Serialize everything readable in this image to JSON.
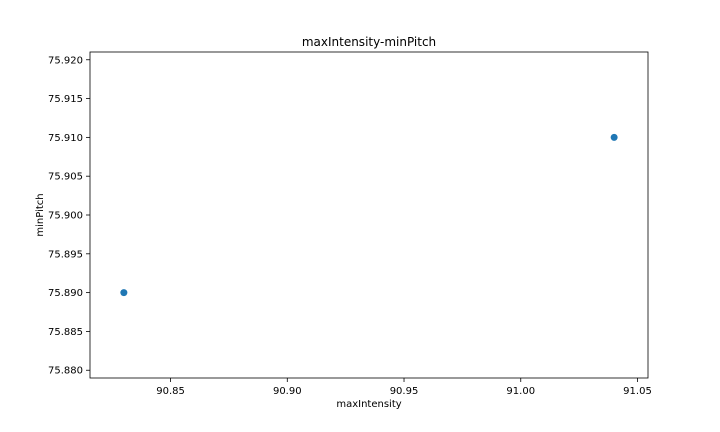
{
  "chart_data": {
    "type": "scatter",
    "title": "maxIntensity-minPitch",
    "xlabel": "maxIntensity",
    "ylabel": "minPitch",
    "xlim": [
      90.8155,
      91.0545
    ],
    "ylim": [
      75.879,
      75.921
    ],
    "x_ticks": [
      90.85,
      90.9,
      90.95,
      91.0,
      91.05
    ],
    "x_tick_labels": [
      "90.85",
      "90.90",
      "90.95",
      "91.00",
      "91.05"
    ],
    "y_ticks": [
      75.88,
      75.885,
      75.89,
      75.895,
      75.9,
      75.905,
      75.91,
      75.915,
      75.92
    ],
    "y_tick_labels": [
      "75.880",
      "75.885",
      "75.890",
      "75.895",
      "75.900",
      "75.905",
      "75.910",
      "75.915",
      "75.920"
    ],
    "points": [
      {
        "x": 90.83,
        "y": 75.89
      },
      {
        "x": 91.04,
        "y": 75.91
      }
    ],
    "marker_color": "#1f77b4",
    "grid": false,
    "legend": false
  }
}
